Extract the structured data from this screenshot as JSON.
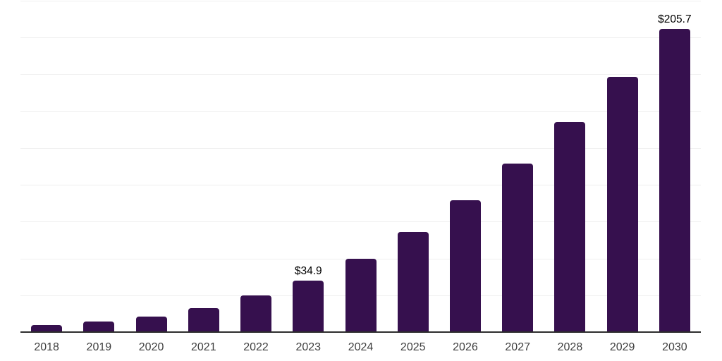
{
  "chart_data": {
    "type": "bar",
    "title": "",
    "xlabel": "",
    "ylabel": "",
    "categories": [
      "2018",
      "2019",
      "2020",
      "2021",
      "2022",
      "2023",
      "2024",
      "2025",
      "2026",
      "2027",
      "2028",
      "2029",
      "2030"
    ],
    "values": [
      4.9,
      7.1,
      10.5,
      16.1,
      24.9,
      34.9,
      49.9,
      68.2,
      89.7,
      114.4,
      142.8,
      173.5,
      205.7
    ],
    "data_labels": [
      "",
      "",
      "",
      "",
      "",
      "$34.9",
      "",
      "",
      "",
      "",
      "",
      "",
      "$205.7"
    ],
    "ylim": [
      0,
      225
    ],
    "grid_interval": 25,
    "grid": true,
    "legend": false,
    "colors": {
      "bar": "#36104e",
      "gridline": "#efefef",
      "axis_line": "#2d2d2d",
      "tick_label": "#3f3f3f",
      "data_label": "#000000",
      "background": "#ffffff"
    }
  }
}
